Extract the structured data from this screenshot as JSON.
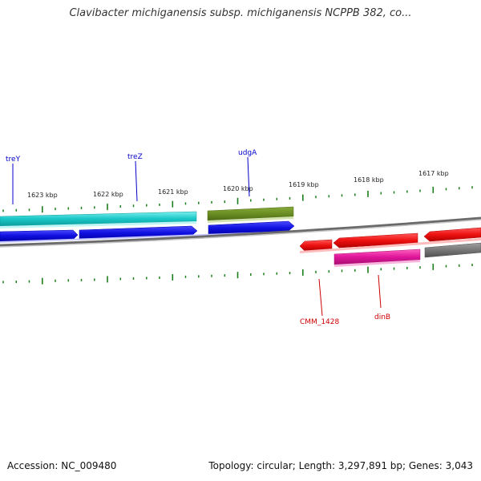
{
  "title": "Clavibacter michiganensis subsp. michiganensis NCPPB 382, co...",
  "footer": {
    "accession": "Accession: NC_009480",
    "summary": "Topology: circular; Length: 3,297,891 bp; Genes: 3,043"
  },
  "kbp_labels": [
    "1623 kbp",
    "1622 kbp",
    "1621 kbp",
    "1620 kbp",
    "1619 kbp",
    "1618 kbp",
    "1617 kbp"
  ],
  "gene_labels": {
    "top": [
      "treY",
      "treZ",
      "udgA"
    ],
    "bottom": [
      "CMM_1428",
      "dinB"
    ]
  },
  "colors": {
    "forward_label": "#0000cc",
    "reverse_label": "#cc0000",
    "tick": "#1a7f1a",
    "cyan": "#19c6c6",
    "blue": "#1010e0",
    "olive": "#6b8e23",
    "red": "#ee1111",
    "pink": "#e0159a",
    "gray": "#777777"
  }
}
